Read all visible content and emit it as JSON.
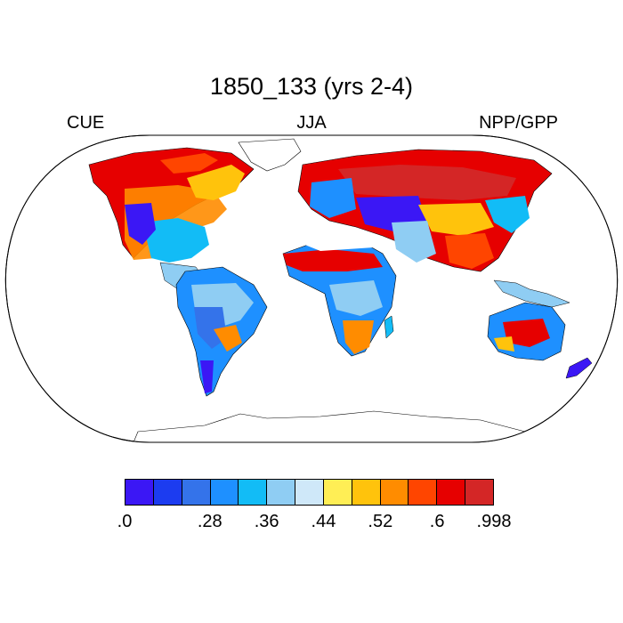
{
  "header": {
    "title": "1850_133 (yrs 2-4)",
    "left_label": "CUE",
    "center_label": "JJA",
    "right_label": "NPP/GPP"
  },
  "colorbar": {
    "colors": [
      "#3b17f5",
      "#1c3cf0",
      "#3473ea",
      "#1e90ff",
      "#12bcf6",
      "#8fcdf3",
      "#cfe8f9",
      "#ffee55",
      "#ffc30c",
      "#ff8c00",
      "#ff4500",
      "#e60000",
      "#d42626"
    ],
    "labels": [
      ".0",
      "",
      ".28",
      ".36",
      ".44",
      ".52",
      ".6",
      ".998"
    ]
  }
}
